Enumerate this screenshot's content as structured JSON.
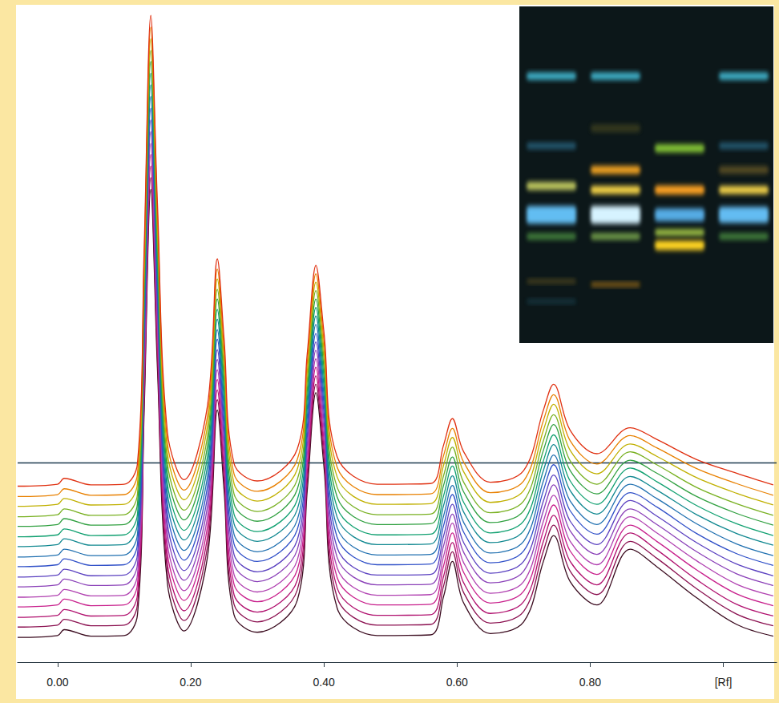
{
  "chart_data": {
    "type": "line",
    "xlim": [
      -0.06,
      1.08
    ],
    "xticks": [
      {
        "value": 0,
        "label": "0.00"
      },
      {
        "value": 0.2,
        "label": "0.20"
      },
      {
        "value": 0.4,
        "label": "0.40"
      },
      {
        "value": 0.6,
        "label": "0.60"
      },
      {
        "value": 0.8,
        "label": "0.80"
      },
      {
        "value": 1.0,
        "label": "[Rf]"
      }
    ],
    "ylim": [
      0,
      100
    ],
    "tick_labels": "x",
    "grid": false,
    "reference_line": 30.7,
    "x": [
      -0.06,
      0.0,
      0.01,
      0.05,
      0.1,
      0.12,
      0.13,
      0.14,
      0.15,
      0.165,
      0.19,
      0.225,
      0.24,
      0.25,
      0.265,
      0.3,
      0.36,
      0.375,
      0.388,
      0.4,
      0.42,
      0.48,
      0.56,
      0.58,
      0.593,
      0.61,
      0.65,
      0.7,
      0.73,
      0.745,
      0.77,
      0.81,
      0.86,
      0.9,
      0.96,
      1.02,
      1.075
    ],
    "series": [
      {
        "color": "#3a0a1e",
        "values": [
          3.8,
          4.1,
          5.0,
          4.0,
          4.1,
          7.3,
          38.3,
          72.8,
          45.2,
          12.1,
          4.8,
          16.1,
          38.8,
          26.6,
          7.3,
          4.6,
          9.5,
          26.4,
          41.5,
          30.2,
          8.3,
          4.1,
          4.2,
          10.2,
          15.5,
          9.1,
          4.4,
          6.2,
          15.6,
          19.5,
          12.4,
          8.8,
          17.4,
          14.7,
          9.9,
          5.8,
          4.0
        ]
      },
      {
        "color": "#8b1050",
        "values": [
          5.4,
          5.7,
          6.6,
          5.6,
          5.7,
          8.9,
          40.0,
          74.6,
          46.9,
          13.7,
          6.4,
          17.7,
          40.4,
          28.2,
          8.9,
          6.2,
          11.1,
          27.8,
          42.8,
          31.6,
          9.9,
          5.7,
          5.8,
          11.8,
          17.0,
          10.7,
          6.0,
          7.8,
          17.2,
          21.1,
          14.0,
          10.4,
          18.6,
          16.0,
          11.3,
          7.4,
          5.6
        ]
      },
      {
        "color": "#b0106e",
        "values": [
          6.9,
          7.2,
          8.1,
          7.1,
          7.2,
          10.4,
          41.6,
          76.4,
          48.6,
          15.2,
          7.9,
          19.2,
          41.9,
          29.7,
          10.4,
          7.7,
          12.6,
          29.2,
          44.1,
          33.0,
          11.4,
          7.2,
          7.3,
          13.3,
          18.4,
          12.2,
          7.5,
          9.3,
          18.7,
          22.6,
          15.5,
          11.9,
          19.9,
          17.3,
          12.7,
          8.9,
          7.1
        ]
      },
      {
        "color": "#c8208c",
        "values": [
          8.5,
          8.8,
          9.7,
          8.7,
          8.8,
          12.0,
          43.3,
          78.2,
          50.3,
          16.8,
          9.5,
          20.8,
          43.5,
          31.3,
          12.0,
          9.3,
          14.2,
          30.6,
          45.4,
          34.3,
          13.0,
          8.8,
          8.9,
          14.9,
          19.9,
          13.8,
          9.1,
          10.9,
          20.3,
          24.2,
          17.1,
          13.5,
          21.1,
          18.6,
          14.2,
          10.5,
          8.7
        ]
      },
      {
        "color": "#b040b0",
        "values": [
          10.0,
          10.3,
          11.2,
          10.2,
          10.3,
          13.5,
          45.0,
          79.9,
          52.0,
          18.3,
          11.0,
          22.3,
          45.0,
          32.8,
          13.5,
          10.8,
          15.7,
          32.0,
          46.7,
          35.7,
          14.5,
          10.3,
          10.4,
          16.4,
          21.4,
          15.3,
          10.6,
          12.4,
          21.8,
          25.7,
          18.6,
          15.0,
          22.4,
          19.9,
          15.6,
          12.0,
          10.2
        ]
      },
      {
        "color": "#8a40b8",
        "values": [
          11.6,
          11.9,
          12.8,
          11.8,
          11.9,
          15.1,
          46.7,
          81.7,
          53.7,
          19.9,
          12.6,
          23.9,
          46.6,
          34.4,
          15.1,
          12.4,
          17.3,
          33.4,
          48.0,
          37.1,
          16.1,
          11.9,
          12.0,
          18.0,
          22.8,
          16.9,
          12.2,
          14.0,
          23.4,
          27.3,
          20.2,
          16.6,
          23.6,
          21.2,
          17.0,
          13.6,
          11.8
        ]
      },
      {
        "color": "#5a40c0",
        "values": [
          13.1,
          13.4,
          14.3,
          13.3,
          13.4,
          16.6,
          48.3,
          83.5,
          55.4,
          21.4,
          14.1,
          25.4,
          48.1,
          35.9,
          16.6,
          13.9,
          18.8,
          34.8,
          49.3,
          38.5,
          17.6,
          13.4,
          13.5,
          19.5,
          24.3,
          18.4,
          13.7,
          15.5,
          24.9,
          28.8,
          21.7,
          18.1,
          24.9,
          22.5,
          18.4,
          15.1,
          13.3
        ]
      },
      {
        "color": "#3050c8",
        "values": [
          14.7,
          15.0,
          15.9,
          14.9,
          15.0,
          18.2,
          50.0,
          85.3,
          57.1,
          23.0,
          15.7,
          27.0,
          49.7,
          37.5,
          18.2,
          15.5,
          20.4,
          36.2,
          50.6,
          39.9,
          19.2,
          15.0,
          15.1,
          21.1,
          25.8,
          20.0,
          15.3,
          17.1,
          26.5,
          30.4,
          23.3,
          19.7,
          26.1,
          23.9,
          19.8,
          16.7,
          14.9
        ]
      },
      {
        "color": "#2070b0",
        "values": [
          16.2,
          16.5,
          17.4,
          16.4,
          16.5,
          19.7,
          51.7,
          87.1,
          58.7,
          24.5,
          17.2,
          28.5,
          51.2,
          39.0,
          19.7,
          17.0,
          21.9,
          37.7,
          52.0,
          41.2,
          20.7,
          16.5,
          16.6,
          22.6,
          27.2,
          21.5,
          16.8,
          18.6,
          28.0,
          31.9,
          24.8,
          21.2,
          27.4,
          25.2,
          21.3,
          18.2,
          16.4
        ]
      },
      {
        "color": "#108890",
        "values": [
          17.8,
          18.1,
          19.0,
          18.0,
          18.1,
          21.3,
          53.4,
          88.9,
          60.4,
          26.1,
          18.8,
          30.1,
          52.8,
          40.6,
          21.3,
          18.6,
          23.5,
          39.1,
          53.3,
          42.6,
          22.3,
          18.1,
          18.2,
          24.2,
          28.7,
          23.1,
          18.4,
          20.2,
          29.6,
          33.5,
          26.4,
          22.8,
          28.6,
          26.5,
          22.7,
          19.8,
          18.0
        ]
      },
      {
        "color": "#10a070",
        "values": [
          19.3,
          19.6,
          20.5,
          19.5,
          19.6,
          22.8,
          55.0,
          90.7,
          62.1,
          27.6,
          20.3,
          31.6,
          54.3,
          42.1,
          22.8,
          20.1,
          25.0,
          40.5,
          54.6,
          44.0,
          23.8,
          19.6,
          19.7,
          25.7,
          30.2,
          24.6,
          19.9,
          21.7,
          31.1,
          35.0,
          27.9,
          24.3,
          29.9,
          27.8,
          24.1,
          21.3,
          19.5
        ]
      },
      {
        "color": "#30a040",
        "values": [
          20.9,
          21.2,
          22.1,
          21.1,
          21.2,
          24.4,
          56.7,
          92.5,
          63.8,
          29.2,
          21.9,
          33.2,
          55.9,
          43.7,
          24.4,
          21.7,
          26.6,
          41.9,
          55.9,
          45.4,
          25.4,
          21.2,
          21.3,
          27.3,
          31.6,
          26.2,
          21.5,
          23.3,
          32.7,
          36.6,
          29.5,
          25.9,
          31.1,
          29.1,
          25.5,
          22.9,
          21.1
        ]
      },
      {
        "color": "#78b020",
        "values": [
          22.4,
          22.7,
          23.6,
          22.6,
          22.7,
          25.9,
          58.4,
          94.2,
          65.5,
          30.7,
          23.4,
          34.7,
          57.4,
          45.2,
          25.9,
          23.2,
          28.1,
          43.3,
          57.2,
          46.8,
          26.9,
          22.7,
          22.8,
          28.8,
          33.1,
          27.7,
          23.0,
          24.8,
          34.2,
          38.1,
          31.0,
          27.4,
          32.4,
          30.4,
          26.9,
          24.4,
          22.6
        ]
      },
      {
        "color": "#c0b000",
        "values": [
          24.0,
          24.3,
          25.2,
          24.2,
          24.3,
          27.5,
          60.0,
          96.0,
          67.2,
          32.3,
          25.0,
          36.3,
          59.0,
          46.8,
          27.5,
          24.8,
          29.7,
          44.7,
          58.5,
          48.1,
          28.5,
          24.3,
          24.4,
          30.4,
          34.6,
          29.3,
          24.6,
          26.4,
          35.8,
          39.7,
          32.6,
          29.0,
          33.6,
          31.7,
          28.4,
          26.0,
          24.2
        ]
      },
      {
        "color": "#e88000",
        "values": [
          25.5,
          25.8,
          26.7,
          25.7,
          25.8,
          29.0,
          61.7,
          97.8,
          68.9,
          33.8,
          26.5,
          37.8,
          60.5,
          48.3,
          29.0,
          26.3,
          31.2,
          46.1,
          59.8,
          49.5,
          30.0,
          25.8,
          25.9,
          31.9,
          36.0,
          30.8,
          26.1,
          27.9,
          37.3,
          41.2,
          34.1,
          30.5,
          34.9,
          33.0,
          29.8,
          27.5,
          25.7
        ]
      },
      {
        "color": "#e03010",
        "values": [
          27.1,
          27.4,
          28.3,
          27.3,
          27.4,
          30.6,
          63.4,
          99.6,
          70.6,
          35.4,
          28.1,
          39.4,
          62.1,
          49.9,
          30.6,
          27.9,
          32.8,
          47.5,
          61.1,
          50.9,
          31.6,
          27.4,
          27.5,
          33.5,
          37.5,
          32.4,
          27.7,
          29.5,
          38.9,
          42.8,
          35.7,
          32.1,
          36.1,
          34.3,
          31.2,
          29.1,
          27.3
        ]
      }
    ]
  }
}
